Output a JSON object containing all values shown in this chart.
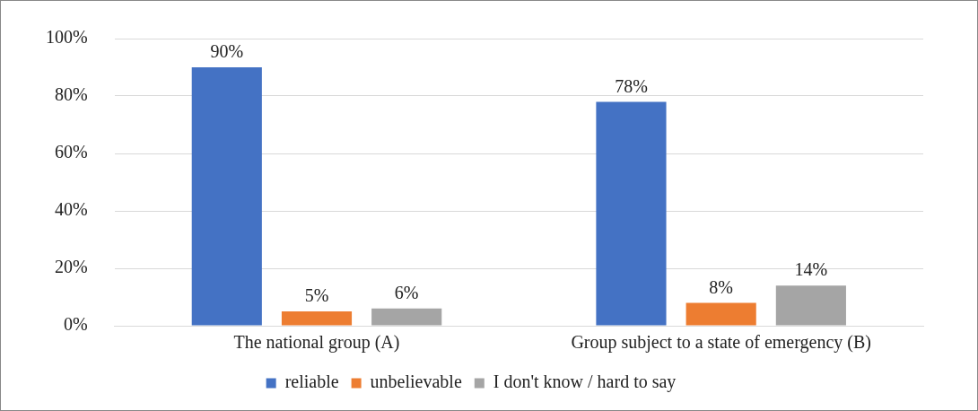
{
  "chart_data": {
    "type": "bar",
    "categories": [
      "The national group (A)",
      "Group subject to a state of emergency (B)"
    ],
    "series": [
      {
        "name": "reliable",
        "color": "#4472c4",
        "values": [
          90,
          78
        ],
        "value_labels": [
          "90%",
          "78%"
        ]
      },
      {
        "name": "unbelievable",
        "color": "#ed7d31",
        "values": [
          5,
          8
        ],
        "value_labels": [
          "5%",
          "8%"
        ]
      },
      {
        "name": "I don't know / hard to say",
        "color": "#a5a5a5",
        "values": [
          6,
          14
        ],
        "value_labels": [
          "6%",
          "14%"
        ]
      }
    ],
    "ylim": [
      0,
      100
    ],
    "yticks": [
      {
        "value": 0,
        "label": "0%"
      },
      {
        "value": 20,
        "label": "20%"
      },
      {
        "value": 40,
        "label": "40%"
      },
      {
        "value": 60,
        "label": "60%"
      },
      {
        "value": 80,
        "label": "80%"
      },
      {
        "value": 100,
        "label": "100%"
      }
    ],
    "grid": "y",
    "legend": "bottom"
  }
}
